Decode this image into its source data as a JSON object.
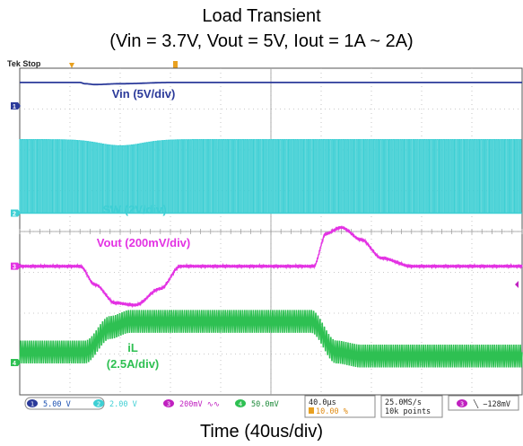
{
  "chart_data": {
    "type": "line",
    "title": "Load Transient",
    "subtitle": "(Vin = 3.7V, Vout = 5V, Iout = 1A ~ 2A)",
    "xlabel": "Time (40us/div)",
    "status": "Tek Stop",
    "grid": true,
    "divisions": {
      "x": 10,
      "y": 8
    },
    "x_range_div": [
      0,
      10
    ],
    "y_range_div": [
      -4,
      4
    ],
    "series": [
      {
        "name": "Vin (5V/div)",
        "channel": "1",
        "color": "#2b3a9a",
        "x": [
          0,
          1.2,
          1.3,
          1.5,
          2.0,
          3.0,
          10.0
        ],
        "y": [
          3.65,
          3.65,
          3.62,
          3.6,
          3.62,
          3.65,
          3.65
        ]
      },
      {
        "name": "SW (2V/div)",
        "channel": "2",
        "color": "#3ecfd4",
        "low": 0.45,
        "high": 2.25,
        "pulses": 230,
        "sag_at": 2.0,
        "sag": 0.15
      },
      {
        "name": "Vout (200mV/div)",
        "channel": "3",
        "color": "#e332e3",
        "x": [
          0,
          1.2,
          1.5,
          1.9,
          2.3,
          2.8,
          3.2,
          5.85,
          6.1,
          6.4,
          6.8,
          7.2,
          7.8,
          10.0
        ],
        "y": [
          -0.85,
          -0.85,
          -1.3,
          -1.75,
          -1.8,
          -1.4,
          -0.85,
          -0.85,
          -0.05,
          0.1,
          -0.2,
          -0.65,
          -0.85,
          -0.85
        ],
        "ripple": 0.04
      },
      {
        "name": "iL\n(2.5A/div)",
        "channel": "4",
        "color": "#2ec052",
        "x": [
          0,
          1.3,
          1.8,
          2.2,
          5.8,
          6.3,
          6.8,
          10.0
        ],
        "y": [
          -2.95,
          -2.95,
          -2.35,
          -2.2,
          -2.2,
          -2.95,
          -3.05,
          -3.05
        ],
        "ripple": 0.28
      }
    ],
    "markers": {
      "ch1_label": "1",
      "ch2_label": "2",
      "ch3_label": "3",
      "ch4_label": "4"
    },
    "status_bar": {
      "ch1": {
        "num": "1",
        "val": "5.00 V"
      },
      "ch2": {
        "num": "2",
        "val": "2.00 V"
      },
      "ch3": {
        "num": "3",
        "val": "200mV ∿∿"
      },
      "ch4": {
        "num": "4",
        "val": "50.0mV"
      },
      "timebase": "40.0µs",
      "trigger_pos": "10.00 %",
      "sample_rate": "25.0MS/s",
      "points": "10k points",
      "trigger_ch": "3",
      "trigger_level": "╲ −128mV"
    },
    "colors": {
      "grid": "#b8b8b8",
      "frame": "#555555",
      "status_blue": "#1a4fb0"
    }
  }
}
